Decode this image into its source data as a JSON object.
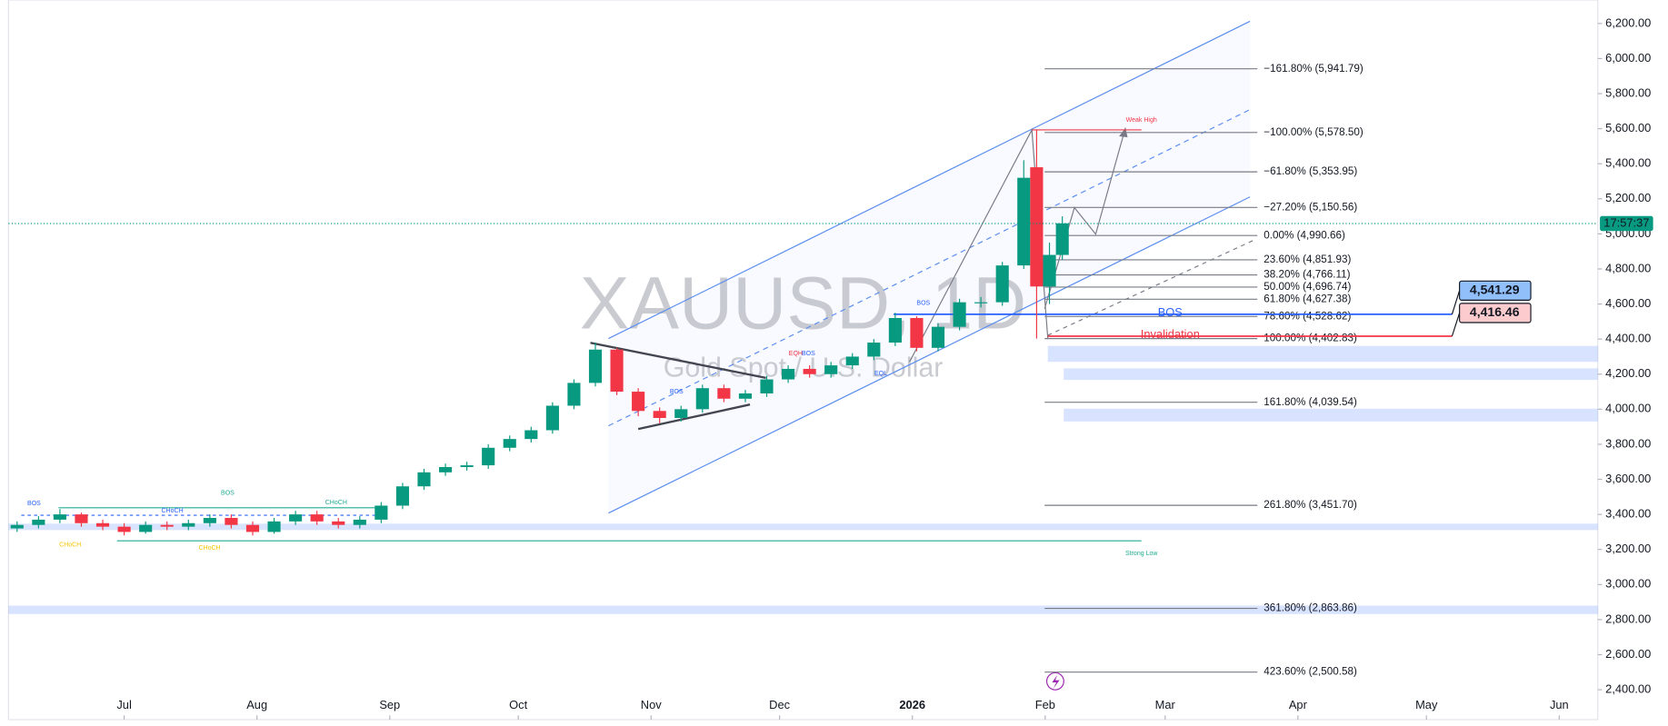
{
  "chart_data": {
    "type": "candlestick",
    "title": "XAUUSD, 1D",
    "subtitle": "Gold Spot / U.S. Dollar",
    "x": [
      -25,
      -20,
      -15,
      -10,
      -5,
      0,
      5,
      10,
      15,
      20,
      25,
      30,
      35,
      40,
      45,
      50,
      55,
      60,
      65,
      70,
      75,
      80,
      85,
      90,
      95,
      100,
      105,
      110,
      115,
      120,
      125,
      130,
      135,
      140,
      145,
      150,
      155,
      160,
      165,
      170,
      175,
      180,
      185,
      190,
      195,
      200,
      205,
      210,
      213,
      216,
      219
    ],
    "open": [
      3320,
      3340,
      3370,
      3400,
      3350,
      3330,
      3300,
      3340,
      3330,
      3350,
      3380,
      3340,
      3300,
      3360,
      3400,
      3360,
      3340,
      3370,
      3450,
      3560,
      3640,
      3670,
      3680,
      3780,
      3830,
      3880,
      4020,
      4150,
      4340,
      4100,
      3990,
      3950,
      4000,
      4120,
      4060,
      4090,
      4170,
      4230,
      4200,
      4250,
      4300,
      4380,
      4520,
      4350,
      4470,
      4610,
      4610,
      4820,
      5380,
      4700,
      4880
    ],
    "high": [
      3360,
      3390,
      3430,
      3410,
      3370,
      3350,
      3360,
      3360,
      3370,
      3400,
      3400,
      3360,
      3380,
      3420,
      3420,
      3380,
      3390,
      3470,
      3580,
      3660,
      3690,
      3700,
      3800,
      3850,
      3900,
      4040,
      4170,
      4380,
      4350,
      4120,
      4010,
      4020,
      4140,
      4140,
      4110,
      4190,
      4250,
      4250,
      4270,
      4320,
      4400,
      4550,
      4530,
      4490,
      4630,
      4640,
      4840,
      5420,
      5590,
      4950,
      5100
    ],
    "low": [
      3300,
      3320,
      3350,
      3330,
      3310,
      3280,
      3290,
      3310,
      3310,
      3330,
      3320,
      3280,
      3290,
      3340,
      3340,
      3320,
      3320,
      3350,
      3430,
      3540,
      3620,
      3650,
      3660,
      3760,
      3810,
      3860,
      4000,
      4130,
      4080,
      3960,
      3920,
      3930,
      3980,
      4040,
      4040,
      4070,
      4150,
      4180,
      4180,
      4230,
      4280,
      4360,
      4330,
      4330,
      4450,
      4580,
      4590,
      4800,
      4403,
      4600,
      4850
    ],
    "close": [
      3340,
      3370,
      3400,
      3350,
      3330,
      3300,
      3340,
      3330,
      3350,
      3380,
      3340,
      3300,
      3360,
      3400,
      3360,
      3340,
      3370,
      3450,
      3560,
      3640,
      3670,
      3680,
      3780,
      3830,
      3880,
      4020,
      4150,
      4340,
      4100,
      3990,
      3950,
      4000,
      4120,
      4060,
      4090,
      4170,
      4230,
      4200,
      4250,
      4300,
      4380,
      4520,
      4350,
      4470,
      4610,
      4610,
      4820,
      5320,
      4700,
      4880,
      5060
    ],
    "up_color": "#089981",
    "down_color": "#f23645",
    "xlim": [
      -27,
      344
    ],
    "xticks": [
      {
        "value": 0,
        "label": "Jul"
      },
      {
        "value": 31,
        "label": "Aug"
      },
      {
        "value": 62,
        "label": "Sep"
      },
      {
        "value": 92,
        "label": "Oct"
      },
      {
        "value": 123,
        "label": "Nov"
      },
      {
        "value": 153,
        "label": "Dec"
      },
      {
        "value": 184,
        "label": "2026"
      },
      {
        "value": 215,
        "label": "Feb"
      },
      {
        "value": 243,
        "label": "Mar"
      },
      {
        "value": 274,
        "label": "Apr"
      },
      {
        "value": 304,
        "label": "May"
      },
      {
        "value": 335,
        "label": "Jun"
      }
    ],
    "ylim": [
      2357,
      6334
    ],
    "yticks": [
      {
        "value": 2400,
        "label": "2,400.00"
      },
      {
        "value": 2600,
        "label": "2,600.00"
      },
      {
        "value": 2800,
        "label": "2,800.00"
      },
      {
        "value": 3000,
        "label": "3,000.00"
      },
      {
        "value": 3200,
        "label": "3,200.00"
      },
      {
        "value": 3400,
        "label": "3,400.00"
      },
      {
        "value": 3600,
        "label": "3,600.00"
      },
      {
        "value": 3800,
        "label": "3,800.00"
      },
      {
        "value": 4000,
        "label": "4,000.00"
      },
      {
        "value": 4200,
        "label": "4,200.00"
      },
      {
        "value": 4400,
        "label": "4,400.00"
      },
      {
        "value": 4600,
        "label": "4,600.00"
      },
      {
        "value": 4800,
        "label": "4,800.00"
      },
      {
        "value": 5000,
        "label": "5,000.00"
      },
      {
        "value": 5200,
        "label": "5,200.00"
      },
      {
        "value": 5400,
        "label": "5,400.00"
      },
      {
        "value": 5600,
        "label": "5,600.00"
      },
      {
        "value": 5800,
        "label": "5,800.00"
      },
      {
        "value": 6000,
        "label": "6,000.00"
      },
      {
        "value": 6200,
        "label": "6,200.00"
      }
    ],
    "last_price": 5059,
    "countdown": "17:57:37",
    "fib_levels": [
      {
        "value": 5941.79,
        "label": "−161.80% (5,941.79)"
      },
      {
        "value": 5578.5,
        "label": "−100.00% (5,578.50)"
      },
      {
        "value": 5353.95,
        "label": "−61.80% (5,353.95)"
      },
      {
        "value": 5150.56,
        "label": "−27.20% (5,150.56)"
      },
      {
        "value": 4990.66,
        "label": "0.00% (4,990.66)"
      },
      {
        "value": 4851.93,
        "label": "23.60% (4,851.93)"
      },
      {
        "value": 4766.11,
        "label": "38.20% (4,766.11)"
      },
      {
        "value": 4696.74,
        "label": "50.00% (4,696.74)"
      },
      {
        "value": 4627.38,
        "label": "61.80% (4,627.38)"
      },
      {
        "value": 4528.62,
        "label": "78.60% (4,528.62)"
      },
      {
        "value": 4402.83,
        "label": "100.00% (4,402.83)"
      },
      {
        "value": 4039.54,
        "label": "161.80% (4,039.54)"
      },
      {
        "value": 3451.7,
        "label": "261.80% (3,451.70)"
      },
      {
        "value": 2863.86,
        "label": "361.80% (2,863.86)"
      },
      {
        "value": 2500.58,
        "label": "423.60% (2,500.58)"
      }
    ],
    "levels": [
      {
        "label": "BOS",
        "value": 4541.29,
        "value_label": "4,541.29",
        "color": "#2962ff"
      },
      {
        "label": "Invalidation",
        "value": 4416.46,
        "value_label": "4,416.46",
        "color": "#f23645"
      }
    ],
    "zones": [
      [
        4270,
        4361
      ],
      [
        4167,
        4233
      ],
      [
        3930,
        4003
      ],
      [
        3311,
        3347
      ],
      [
        2832,
        2880
      ]
    ],
    "annotations": [
      "BOS",
      "BOS",
      "CHoCH",
      "CHoCH",
      "CHoCH",
      "CHoCH",
      "BOS",
      "EQH",
      "BOS",
      "EQL",
      "BOS",
      "Weak High",
      "Strong Low"
    ]
  }
}
